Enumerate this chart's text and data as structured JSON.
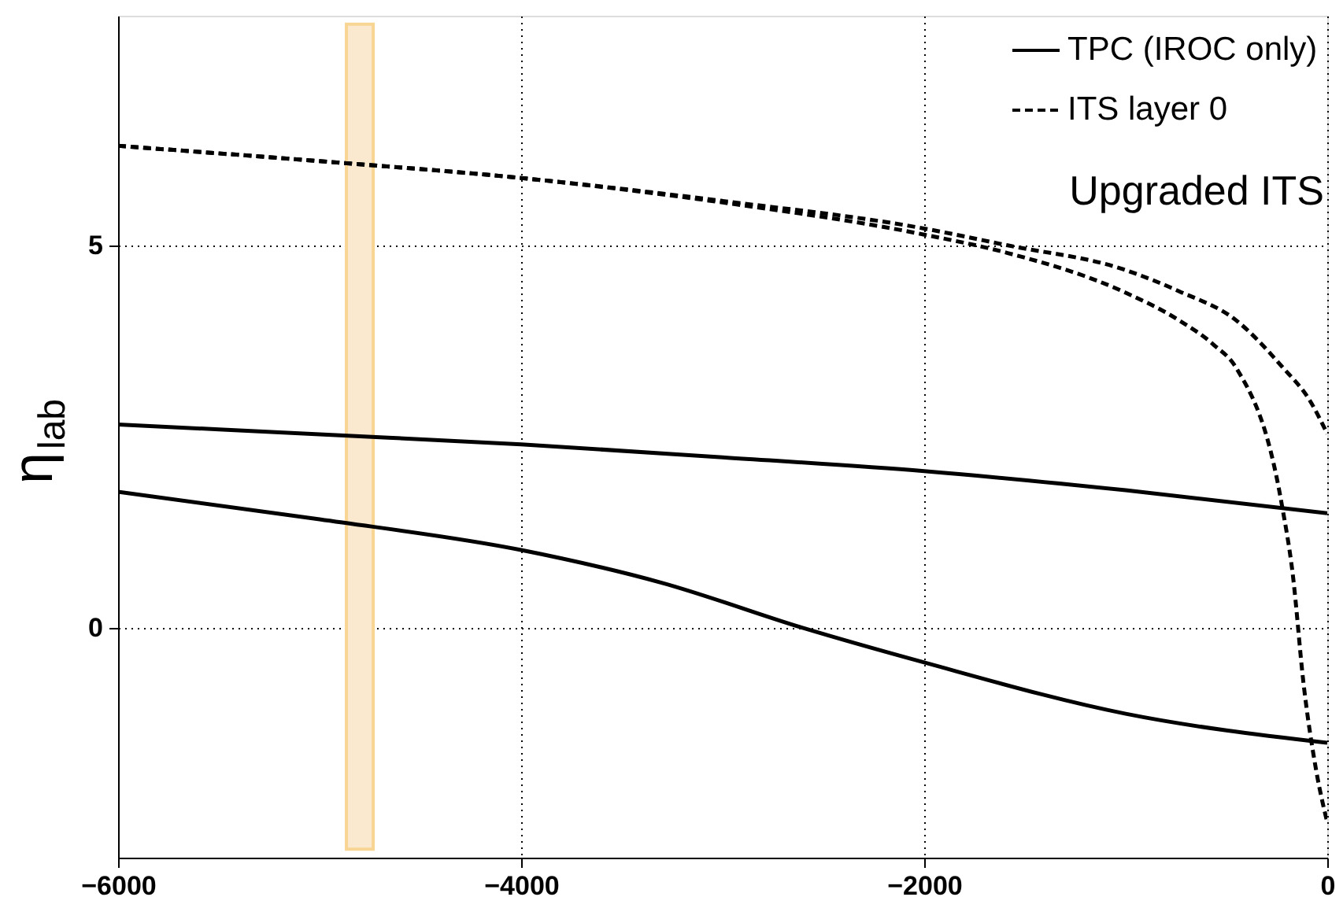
{
  "chart_data": {
    "type": "line",
    "ylabel": "η$_{lab}$",
    "xlim": [
      -6000,
      0
    ],
    "ylim": [
      -3,
      8
    ],
    "xticks": [
      -6000,
      -4000,
      -2000,
      0
    ],
    "yticks": [
      0,
      5
    ],
    "grid": true,
    "legend": "top right",
    "annotations": [
      "Upgraded ITS"
    ],
    "bands": [
      {
        "axis": "x",
        "from": -4867,
        "to": -4734,
        "color": "#fbe9cf"
      }
    ],
    "series": [
      {
        "name": "TPC (IROC only)",
        "color": "#000000",
        "line_style": "solid",
        "x": [
          -6000,
          -5000,
          -4000,
          -3000,
          -2000,
          -1000,
          0
        ],
        "values": [
          2.66,
          2.53,
          2.4,
          2.23,
          2.05,
          1.8,
          1.5
        ]
      },
      {
        "color": "#000000",
        "line_style": "solid",
        "x": [
          -6000,
          -5000,
          -4000,
          -3300,
          -2600,
          -2000,
          -1000,
          0
        ],
        "values": [
          1.78,
          1.42,
          1.02,
          0.59,
          0,
          -0.45,
          -1.12,
          -1.5
        ]
      },
      {
        "name": "ITS layer 0",
        "color": "#000000",
        "line_style": "dashed",
        "x": [
          -6000,
          -5000,
          -4000,
          -3000,
          -2000,
          -1586,
          -1016,
          -735,
          -452,
          -226,
          -86,
          0
        ],
        "values": [
          6.3,
          6.1,
          5.88,
          5.58,
          5.22,
          5.0,
          4.69,
          4.4,
          4.02,
          3.42,
          2.97,
          2.54
        ]
      },
      {
        "color": "#000000",
        "line_style": "dashed",
        "x": [
          -6000,
          -5000,
          -4000,
          -3000,
          -2000,
          -1586,
          -1016,
          -735,
          -563,
          -452,
          -226,
          -172,
          -117,
          -55,
          0
        ],
        "values": [
          6.3,
          6.1,
          5.88,
          5.56,
          5.14,
          4.9,
          4.4,
          4.02,
          3.7,
          3.4,
          1.62,
          0.72,
          -0.74,
          -1.86,
          -2.54
        ]
      }
    ]
  }
}
